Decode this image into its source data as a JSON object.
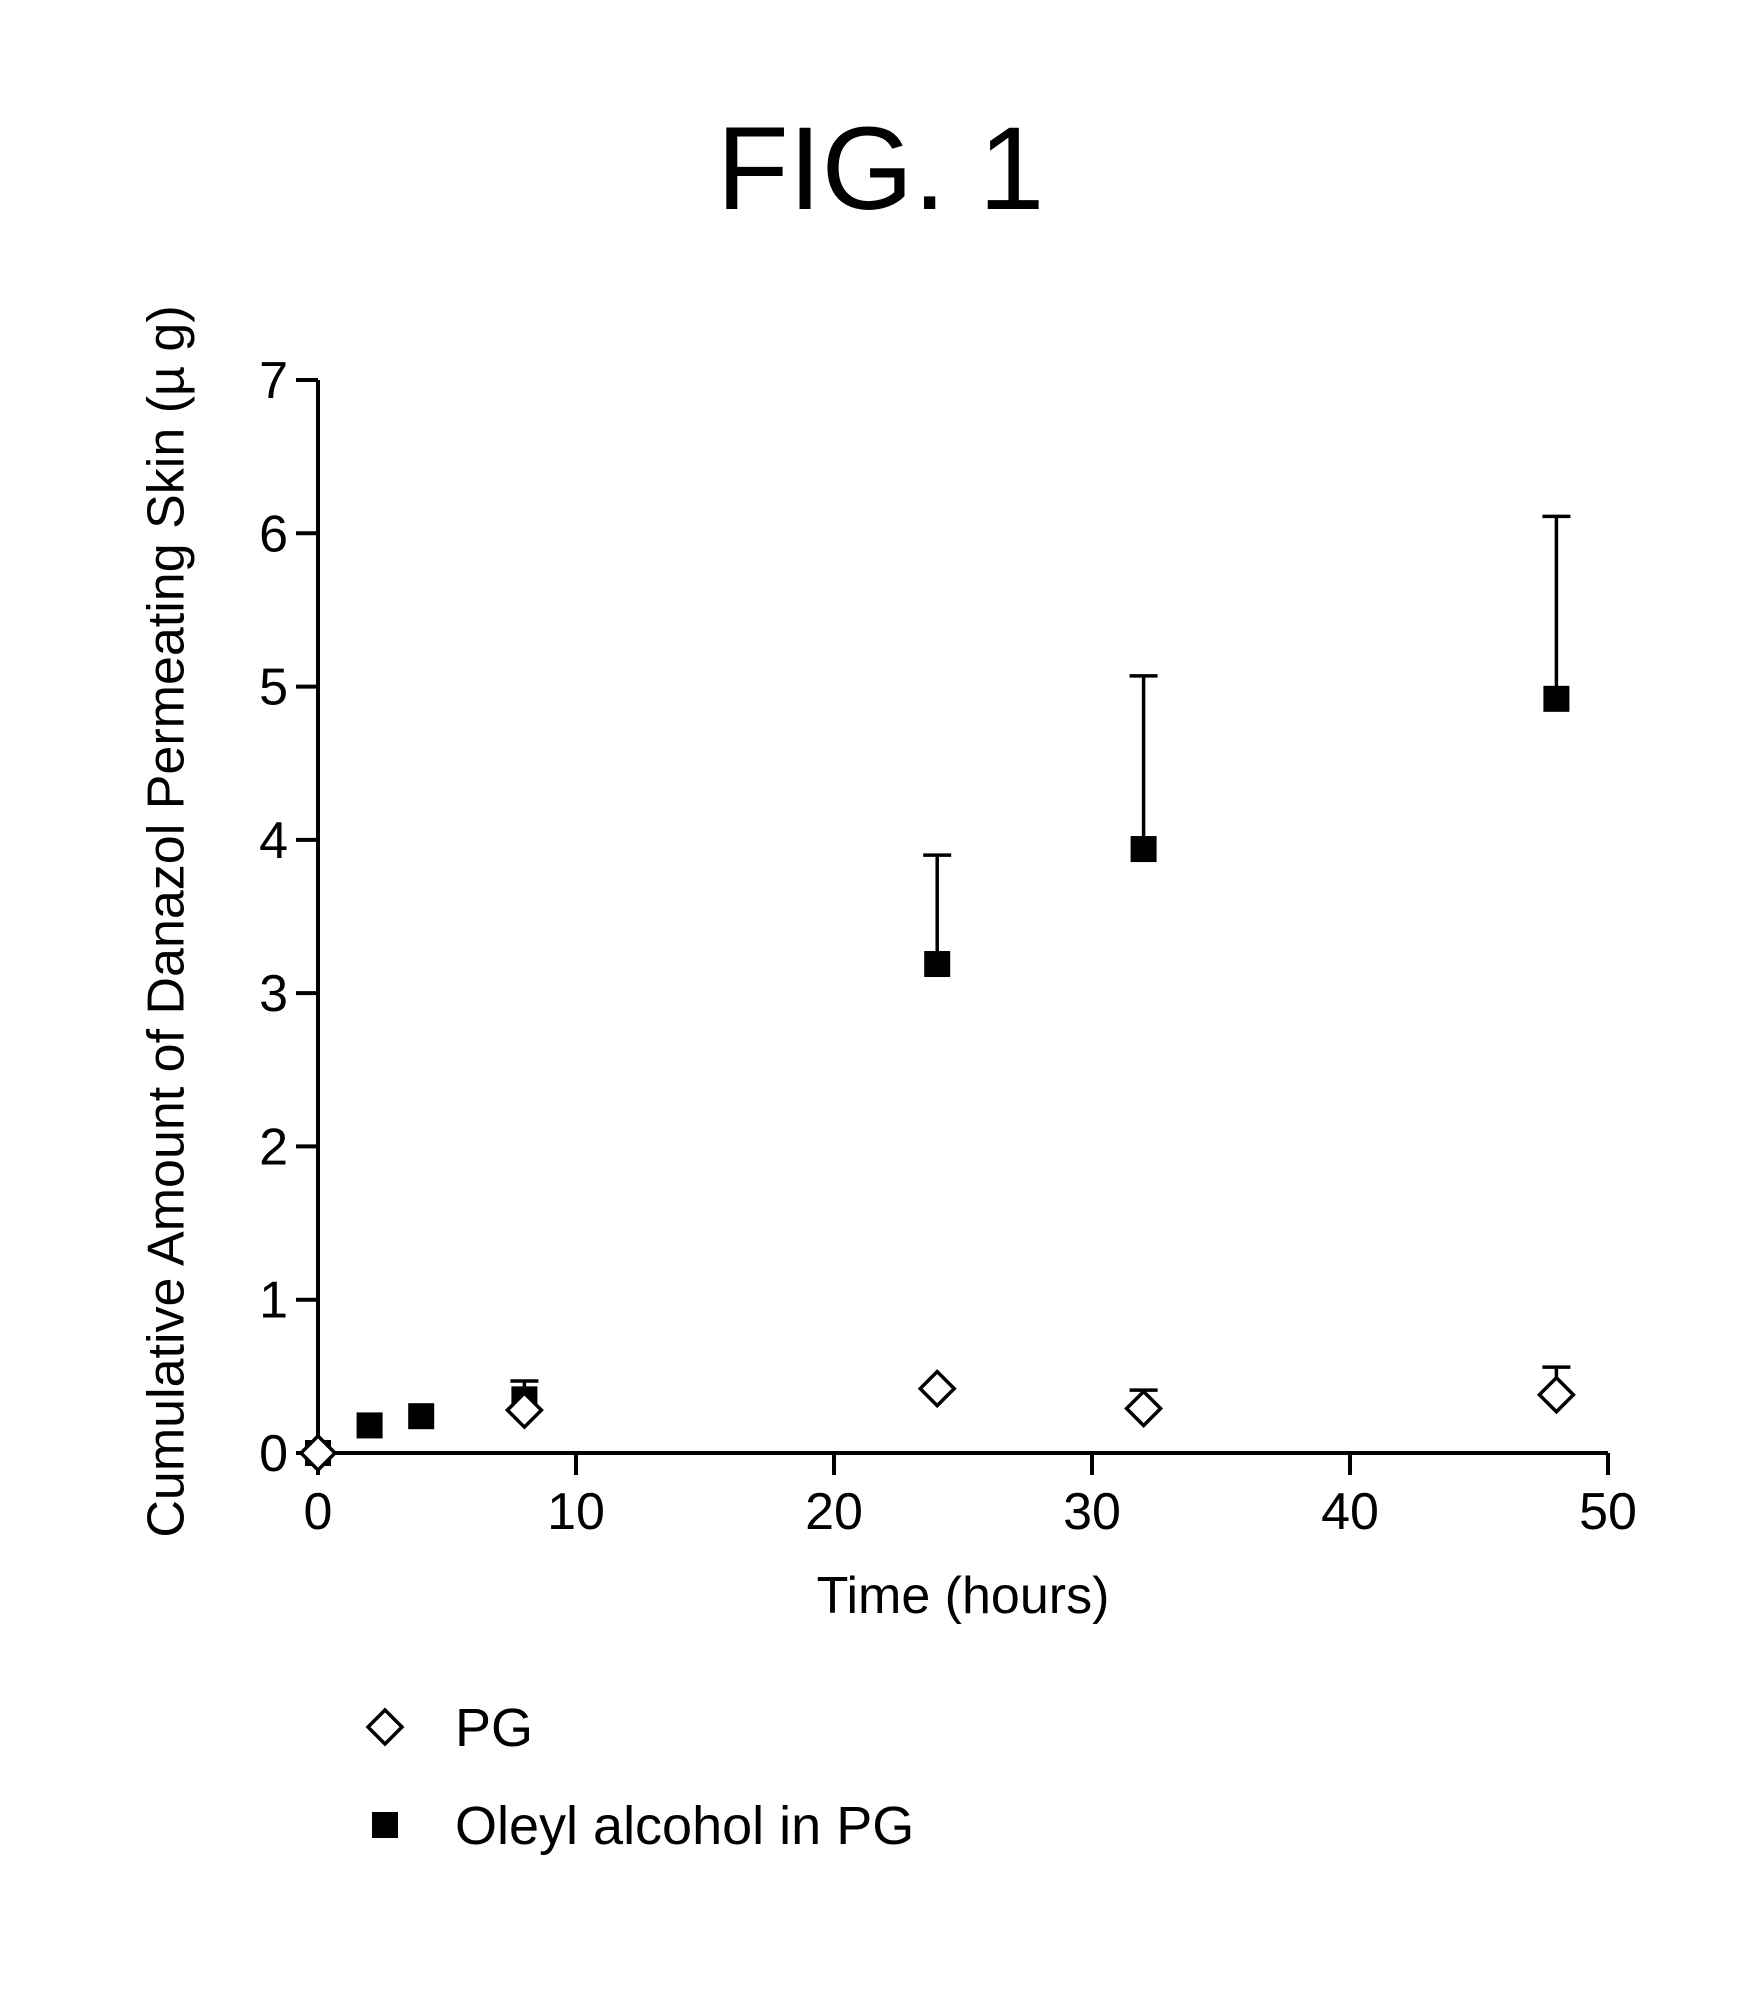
{
  "chart_data": {
    "type": "scatter",
    "title": "FIG. 1",
    "xlabel": "Time (hours)",
    "ylabel": "Cumulative Amount of Danazol Permeating Skin (µ g)",
    "xlim": [
      0,
      50
    ],
    "ylim": [
      0,
      7
    ],
    "xticks": [
      0,
      10,
      20,
      30,
      40,
      50
    ],
    "yticks": [
      0,
      1,
      2,
      3,
      4,
      5,
      6,
      7
    ],
    "grid": false,
    "legend_position": "bottom-left",
    "series": [
      {
        "name": "PG",
        "marker": "open-diamond",
        "color": "#000000",
        "points": [
          {
            "x": 0,
            "y": 0.0,
            "err": 0.0
          },
          {
            "x": 8,
            "y": 0.28,
            "err": 0.0
          },
          {
            "x": 24,
            "y": 0.42,
            "err": 0.0
          },
          {
            "x": 32,
            "y": 0.29,
            "err": 0.12
          },
          {
            "x": 48,
            "y": 0.38,
            "err": 0.18
          }
        ]
      },
      {
        "name": "Oleyl alcohol in PG",
        "marker": "filled-square",
        "color": "#000000",
        "points": [
          {
            "x": 0,
            "y": 0.0,
            "err": 0.0
          },
          {
            "x": 2,
            "y": 0.18,
            "err": 0.0
          },
          {
            "x": 4,
            "y": 0.24,
            "err": 0.0
          },
          {
            "x": 8,
            "y": 0.35,
            "err": 0.12
          },
          {
            "x": 24,
            "y": 3.19,
            "err": 0.71
          },
          {
            "x": 32,
            "y": 3.94,
            "err": 1.13
          },
          {
            "x": 48,
            "y": 4.92,
            "err": 1.19
          }
        ]
      }
    ]
  }
}
